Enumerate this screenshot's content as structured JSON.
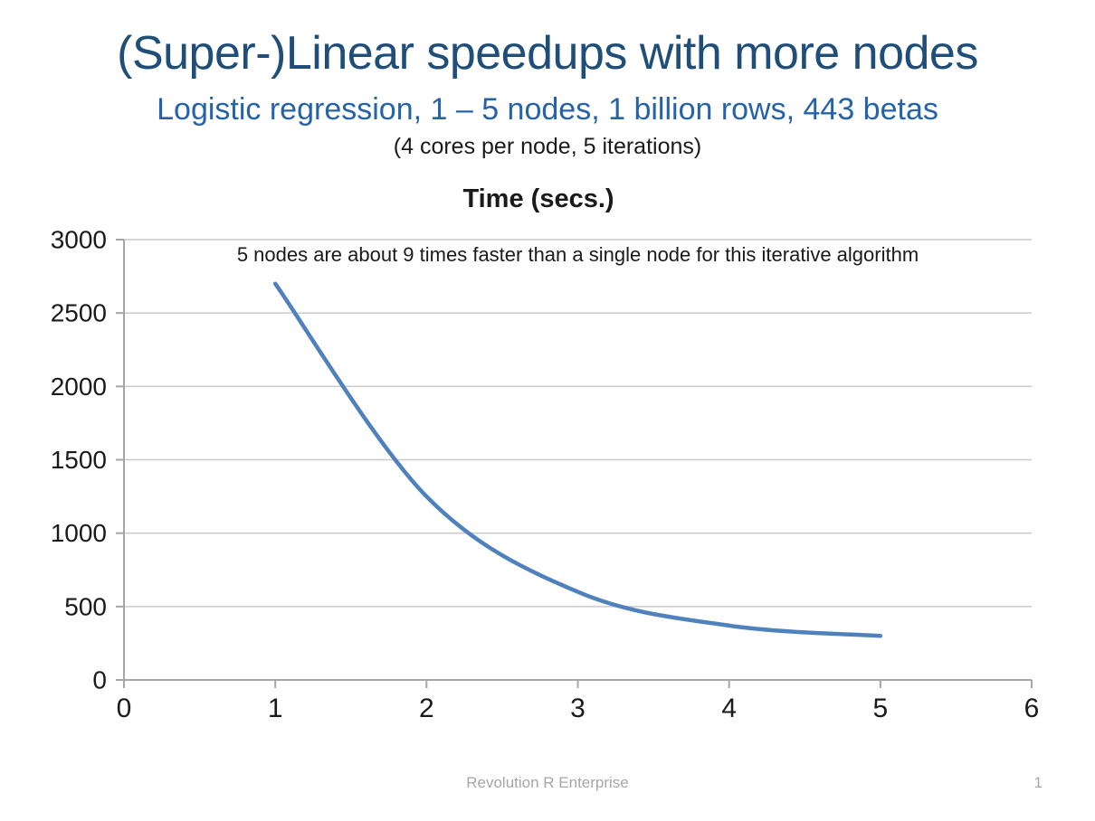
{
  "slide": {
    "title": "(Super-)Linear speedups with more nodes",
    "subtitle": "Logistic regression, 1 – 5 nodes, 1 billion rows, 443 betas",
    "subnote": "(4 cores per node, 5 iterations)",
    "title_color": "#1F4E79",
    "subtitle_color": "#2563A8"
  },
  "chart_data": {
    "type": "line",
    "title": "Time (secs.)",
    "annotation": "5 nodes are about 9 times faster than a single node for this iterative algorithm",
    "series": [
      {
        "name": "Time (secs.)",
        "x": [
          1,
          2,
          3,
          4,
          5
        ],
        "values": [
          2700,
          1250,
          600,
          370,
          300
        ]
      }
    ],
    "xlabel": "",
    "ylabel": "",
    "xlim": [
      0,
      6
    ],
    "ylim": [
      0,
      3000
    ],
    "x_ticks": [
      0,
      1,
      2,
      3,
      4,
      5,
      6
    ],
    "y_ticks": [
      0,
      500,
      1000,
      1500,
      2000,
      2500,
      3000
    ],
    "grid": "horizontal",
    "legend": "none",
    "smooth": true,
    "line_color": "#4F81BD",
    "grid_color": "#C9C9C9",
    "axis_color": "#A6A6A6",
    "tick_label_color": "#1a1a1a"
  },
  "footer": {
    "text": "Revolution R Enterprise",
    "page_number": "1",
    "color": "#A6A6A6"
  }
}
